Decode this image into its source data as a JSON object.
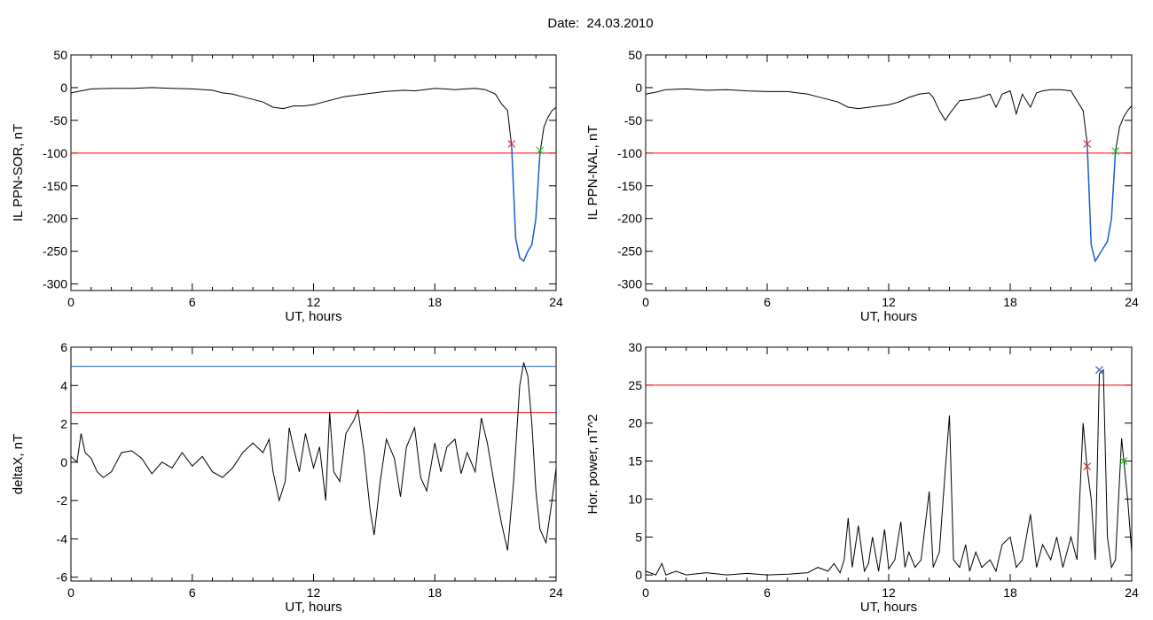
{
  "page": {
    "title": "Date:  24.03.2010"
  },
  "colors": {
    "series": "#000000",
    "threshold_red": "#ff0000",
    "threshold_blue": "#1f5fd0",
    "highlight": "#1f5fd0",
    "marker_red": "#e03030",
    "marker_green": "#20c020",
    "marker_blue": "#3060d0"
  },
  "chart_data": [
    {
      "type": "line",
      "xlabel": "UT, hours",
      "ylabel": "IL PPN-SOR, nT",
      "xlim": [
        0,
        24
      ],
      "ylim": [
        -310,
        50
      ],
      "xticks": [
        0,
        6,
        12,
        18,
        24
      ],
      "yticks": [
        50,
        0,
        -50,
        -100,
        -150,
        -200,
        -250,
        -300
      ],
      "thresholds": [
        {
          "y": -100,
          "color": "red"
        }
      ],
      "series": [
        {
          "x": [
            0,
            0.5,
            1,
            2,
            3,
            4,
            5,
            6,
            7,
            7.5,
            8,
            8.5,
            9,
            9.5,
            10,
            10.5,
            11,
            11.5,
            12,
            12.5,
            13,
            13.5,
            14,
            14.5,
            15,
            15.5,
            16,
            16.5,
            17,
            17.5,
            18,
            18.5,
            19,
            19.5,
            20,
            20.5,
            21,
            21.3,
            21.6,
            21.8,
            22,
            22.2,
            22.4,
            22.6,
            22.8,
            23,
            23.2,
            23.4,
            23.6,
            23.8,
            24
          ],
          "y": [
            -8,
            -5,
            -2,
            -1,
            -1,
            0,
            -1,
            -2,
            -4,
            -8,
            -10,
            -14,
            -18,
            -22,
            -30,
            -32,
            -28,
            -28,
            -26,
            -22,
            -18,
            -14,
            -12,
            -10,
            -8,
            -6,
            -5,
            -4,
            -5,
            -3,
            -1,
            -2,
            -3,
            -2,
            -1,
            -3,
            -10,
            -25,
            -35,
            -90,
            -230,
            -260,
            -265,
            -250,
            -240,
            -200,
            -100,
            -60,
            -45,
            -35,
            -30
          ]
        }
      ],
      "highlight": {
        "from": 21.8,
        "to": 23.2
      },
      "markers": [
        {
          "x": 21.8,
          "y": -86,
          "color": "red"
        },
        {
          "x": 23.2,
          "y": -96,
          "color": "green"
        }
      ]
    },
    {
      "type": "line",
      "xlabel": "UT, hours",
      "ylabel": "IL PPN-NAL, nT",
      "xlim": [
        0,
        24
      ],
      "ylim": [
        -310,
        50
      ],
      "xticks": [
        0,
        6,
        12,
        18,
        24
      ],
      "yticks": [
        50,
        0,
        -50,
        -100,
        -150,
        -200,
        -250,
        -300
      ],
      "thresholds": [
        {
          "y": -100,
          "color": "red"
        }
      ],
      "series": [
        {
          "x": [
            0,
            0.5,
            1,
            2,
            3,
            4,
            5,
            6,
            7,
            7.5,
            8,
            8.5,
            9,
            9.5,
            10,
            10.5,
            11,
            11.5,
            12,
            12.5,
            13,
            13.5,
            14,
            14.2,
            14.5,
            14.8,
            15,
            15.5,
            16,
            16.5,
            17,
            17.3,
            17.6,
            18,
            18.3,
            18.6,
            19,
            19.3,
            19.6,
            20,
            20.5,
            21,
            21.3,
            21.6,
            21.8,
            22,
            22.2,
            22.4,
            22.6,
            22.8,
            23,
            23.2,
            23.4,
            23.6,
            23.8,
            24
          ],
          "y": [
            -10,
            -7,
            -3,
            -2,
            -4,
            -3,
            -5,
            -6,
            -6,
            -8,
            -10,
            -14,
            -18,
            -22,
            -30,
            -32,
            -30,
            -28,
            -26,
            -22,
            -15,
            -10,
            -8,
            -15,
            -35,
            -50,
            -40,
            -20,
            -18,
            -15,
            -10,
            -30,
            -10,
            -5,
            -40,
            -10,
            -30,
            -8,
            -5,
            -3,
            -3,
            -5,
            -20,
            -35,
            -85,
            -240,
            -265,
            -255,
            -245,
            -235,
            -200,
            -97,
            -60,
            -45,
            -35,
            -28
          ]
        }
      ],
      "highlight": {
        "from": 21.8,
        "to": 23.2
      },
      "markers": [
        {
          "x": 21.8,
          "y": -86,
          "color": "red"
        },
        {
          "x": 23.2,
          "y": -97,
          "color": "green"
        }
      ]
    },
    {
      "type": "line",
      "xlabel": "UT, hours",
      "ylabel": "deltaX, nT",
      "xlim": [
        0,
        24
      ],
      "ylim": [
        -6.2,
        6
      ],
      "xticks": [
        0,
        6,
        12,
        18,
        24
      ],
      "yticks": [
        6,
        4,
        2,
        0,
        -2,
        -4,
        -6
      ],
      "thresholds": [
        {
          "y": 5,
          "color": "blue"
        },
        {
          "y": 2.6,
          "color": "red"
        }
      ],
      "series": [
        {
          "x": [
            0,
            0.3,
            0.5,
            0.7,
            1,
            1.3,
            1.6,
            2,
            2.5,
            3,
            3.5,
            4,
            4.5,
            5,
            5.5,
            6,
            6.5,
            7,
            7.5,
            8,
            8.5,
            9,
            9.5,
            9.8,
            10,
            10.3,
            10.6,
            10.8,
            11,
            11.3,
            11.6,
            12,
            12.3,
            12.6,
            12.8,
            13,
            13.3,
            13.6,
            14,
            14.2,
            14.5,
            14.8,
            15,
            15.3,
            15.6,
            16,
            16.3,
            16.6,
            17,
            17.3,
            17.6,
            18,
            18.3,
            18.6,
            19,
            19.3,
            19.6,
            20,
            20.3,
            20.6,
            21,
            21.3,
            21.6,
            21.9,
            22.2,
            22.4,
            22.6,
            22.8,
            23,
            23.2,
            23.5,
            23.8,
            24
          ],
          "y": [
            0.3,
            0,
            1.5,
            0.5,
            0.2,
            -0.5,
            -0.8,
            -0.5,
            0.5,
            0.6,
            0.2,
            -0.6,
            0,
            -0.3,
            0.5,
            -0.2,
            0.3,
            -0.5,
            -0.8,
            -0.3,
            0.5,
            1,
            0.5,
            1.2,
            -0.5,
            -2,
            -1,
            1.8,
            0.8,
            -0.5,
            1.5,
            -0.3,
            0.8,
            -2,
            2.6,
            -0.5,
            -1,
            1.5,
            2.2,
            2.7,
            0.5,
            -2.5,
            -3.8,
            -1,
            1.2,
            0.2,
            -1.8,
            0.8,
            1.8,
            -0.8,
            -1.5,
            1,
            -0.5,
            0.8,
            1.2,
            -0.6,
            0.5,
            -0.5,
            2.3,
            1,
            -1.5,
            -3.2,
            -4.6,
            -1,
            4,
            5.2,
            4.5,
            2,
            -1.5,
            -3.5,
            -4.2,
            -2,
            -0.3
          ]
        }
      ],
      "markers": []
    },
    {
      "type": "line",
      "xlabel": "UT, hours",
      "ylabel": "Hor. power, nT^2",
      "xlim": [
        0,
        24
      ],
      "ylim": [
        -0.8,
        30
      ],
      "xticks": [
        0,
        6,
        12,
        18,
        24
      ],
      "yticks": [
        30,
        25,
        20,
        15,
        10,
        5,
        0
      ],
      "thresholds": [
        {
          "y": 25,
          "color": "red"
        }
      ],
      "series": [
        {
          "x": [
            0,
            0.5,
            0.8,
            1,
            1.5,
            2,
            3,
            4,
            5,
            6,
            7,
            8,
            8.5,
            9,
            9.3,
            9.6,
            9.8,
            10,
            10.2,
            10.5,
            10.8,
            11,
            11.2,
            11.5,
            11.8,
            12,
            12.3,
            12.6,
            12.8,
            13,
            13.3,
            13.6,
            14,
            14.2,
            14.5,
            14.8,
            15,
            15.2,
            15.5,
            15.8,
            16,
            16.3,
            16.6,
            17,
            17.3,
            17.6,
            18,
            18.3,
            18.6,
            19,
            19.3,
            19.6,
            20,
            20.3,
            20.6,
            21,
            21.3,
            21.6,
            21.8,
            22,
            22.2,
            22.4,
            22.6,
            22.8,
            23,
            23.2,
            23.5,
            23.8,
            24
          ],
          "y": [
            0.5,
            0,
            1.5,
            0,
            0.5,
            0,
            0.3,
            0,
            0.2,
            0,
            0.1,
            0.3,
            1,
            0.5,
            1.5,
            0.3,
            2,
            7.5,
            1,
            6.5,
            0.5,
            1.5,
            5,
            0.5,
            6,
            0.8,
            2,
            7,
            1,
            3,
            1,
            2,
            11,
            1,
            3,
            14,
            21,
            2,
            1,
            4,
            0.5,
            3,
            1,
            2,
            0.5,
            4,
            5,
            1,
            2,
            8,
            1,
            4,
            2,
            5,
            1,
            5,
            2,
            20,
            14,
            10,
            2,
            26.5,
            27,
            5,
            1,
            2,
            18,
            10,
            3
          ]
        }
      ],
      "markers": [
        {
          "x": 21.8,
          "y": 14.3,
          "color": "red"
        },
        {
          "x": 22.4,
          "y": 27,
          "color": "blue"
        },
        {
          "x": 23.6,
          "y": 15,
          "color": "green"
        }
      ]
    }
  ]
}
